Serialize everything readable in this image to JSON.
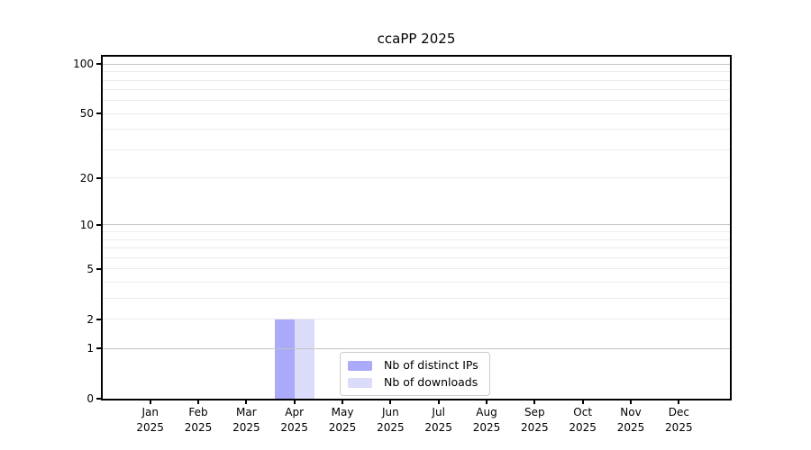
{
  "title": "ccaPP 2025",
  "chart_data": {
    "type": "bar",
    "title": "ccaPP 2025",
    "categories": [
      "Jan 2025",
      "Feb 2025",
      "Mar 2025",
      "Apr 2025",
      "May 2025",
      "Jun 2025",
      "Jul 2025",
      "Aug 2025",
      "Sep 2025",
      "Oct 2025",
      "Nov 2025",
      "Dec 2025"
    ],
    "series": [
      {
        "name": "Nb of distinct IPs",
        "color": "#aaaaf8",
        "values": [
          0,
          0,
          0,
          2,
          0,
          0,
          0,
          0,
          0,
          0,
          0,
          0
        ]
      },
      {
        "name": "Nb of downloads",
        "color": "#dbdbfa",
        "values": [
          0,
          0,
          0,
          2,
          0,
          0,
          0,
          0,
          0,
          0,
          0,
          0
        ]
      }
    ],
    "xlabel": "",
    "ylabel": "",
    "yscale": "log1p",
    "ylim": [
      0,
      111
    ],
    "y_ticks": [
      0,
      1,
      2,
      5,
      10,
      20,
      50,
      100
    ],
    "grid": true,
    "legend_position": "lower center"
  },
  "colors": {
    "background": "#ffffff",
    "axis": "#000000",
    "major_grid": "#c4c4c4",
    "minor_grid": "#ebebeb",
    "text": "#000000",
    "legend_border": "#cccccc",
    "bar_distinct_ips": "#aaaaf8",
    "bar_downloads": "#dbdbfa"
  }
}
